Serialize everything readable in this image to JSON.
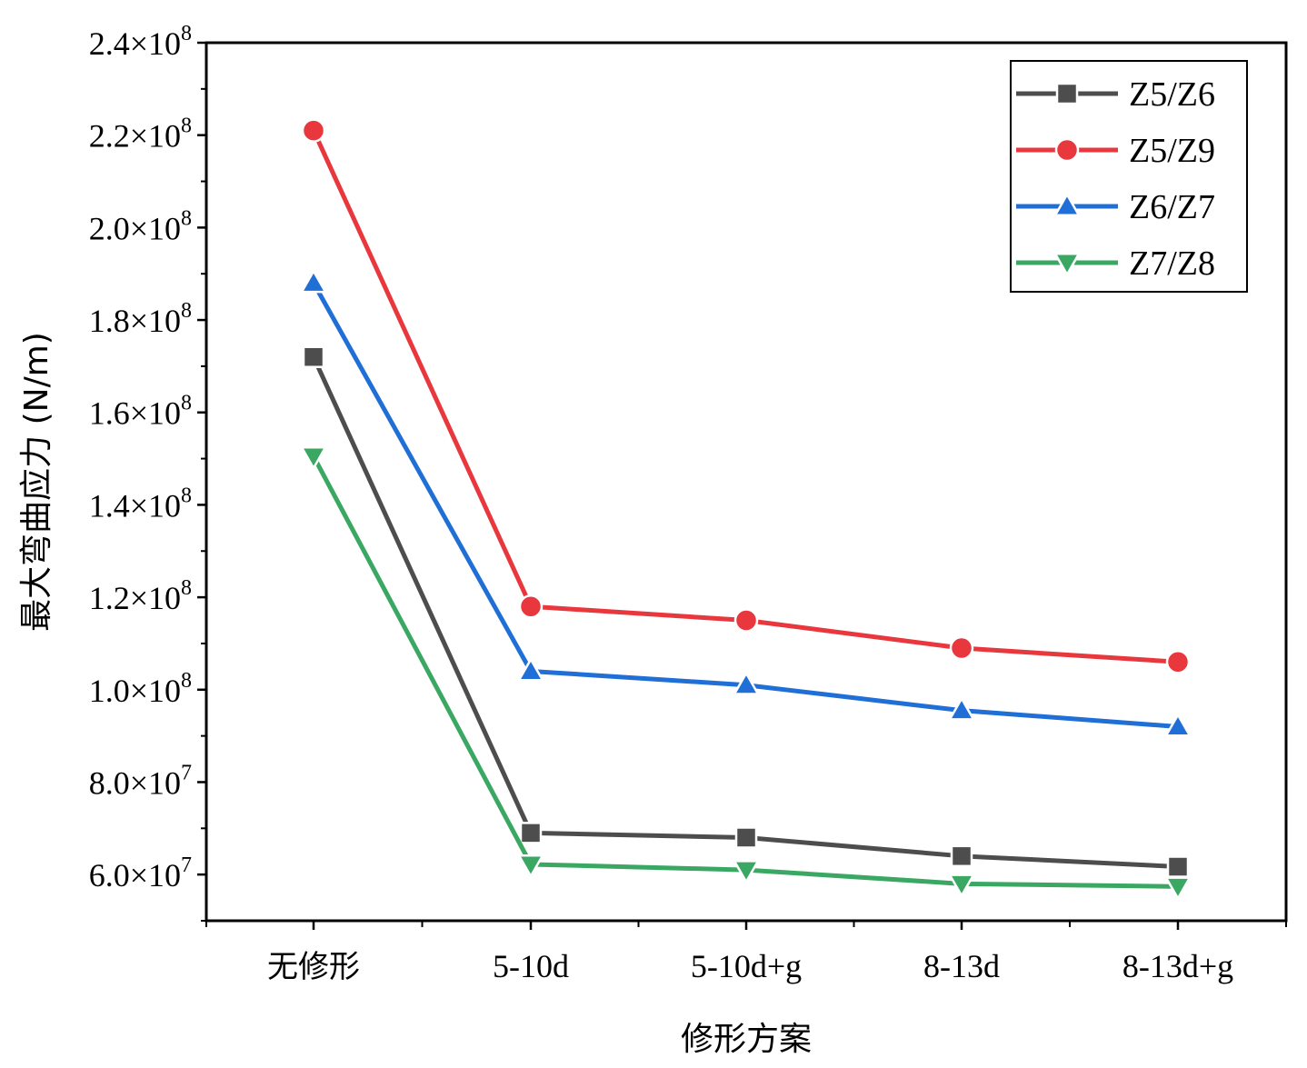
{
  "chart_data": {
    "type": "line",
    "title": "",
    "xlabel": "修形方案",
    "ylabel": "最大弯曲应力 (N/m)",
    "categories": [
      "无修形",
      "5-10d",
      "5-10d+g",
      "8-13d",
      "8-13d+g"
    ],
    "ylim": [
      50000000,
      240000000
    ],
    "yticks": [
      {
        "value": 60000000,
        "mantissa": "6.0×10",
        "exp": "7"
      },
      {
        "value": 80000000,
        "mantissa": "8.0×10",
        "exp": "7"
      },
      {
        "value": 100000000,
        "mantissa": "1.0×10",
        "exp": "8"
      },
      {
        "value": 120000000,
        "mantissa": "1.2×10",
        "exp": "8"
      },
      {
        "value": 140000000,
        "mantissa": "1.4×10",
        "exp": "8"
      },
      {
        "value": 160000000,
        "mantissa": "1.6×10",
        "exp": "8"
      },
      {
        "value": 180000000,
        "mantissa": "1.8×10",
        "exp": "8"
      },
      {
        "value": 200000000,
        "mantissa": "2.0×10",
        "exp": "8"
      },
      {
        "value": 220000000,
        "mantissa": "2.2×10",
        "exp": "8"
      },
      {
        "value": 240000000,
        "mantissa": "2.4×10",
        "exp": "8"
      }
    ],
    "legend_position": "top-right",
    "grid": false,
    "series": [
      {
        "name": "Z5/Z6",
        "color": "#4d4d4d",
        "marker": "square",
        "values": [
          172000000,
          69000000,
          68000000,
          64000000,
          61700000
        ]
      },
      {
        "name": "Z5/Z9",
        "color": "#e8383d",
        "marker": "circle",
        "values": [
          221000000,
          118000000,
          115000000,
          109000000,
          106000000
        ]
      },
      {
        "name": "Z6/Z7",
        "color": "#1f6fd6",
        "marker": "triangle-up",
        "values": [
          188000000,
          104000000,
          101000000,
          95500000,
          92000000
        ]
      },
      {
        "name": "Z7/Z8",
        "color": "#3aa863",
        "marker": "triangle-down",
        "values": [
          150500000,
          62200000,
          61000000,
          58000000,
          57400000
        ]
      }
    ]
  }
}
